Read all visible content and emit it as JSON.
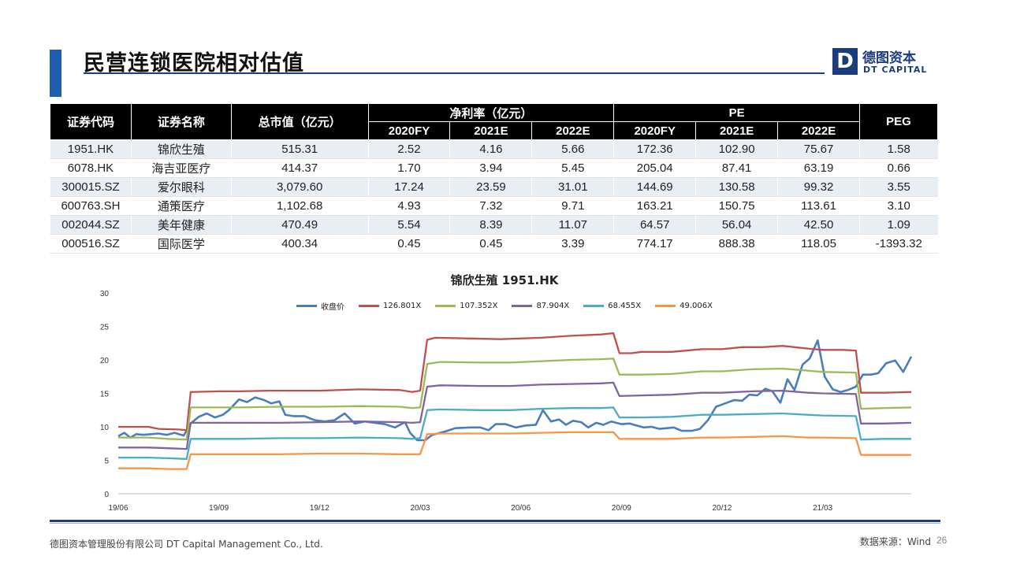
{
  "page": {
    "title": "民营连锁医院相对估值",
    "logo_cn": "德图资本",
    "logo_en": "DT CAPITAL",
    "logo_mark": "D",
    "footer_company": "德图资本管理股份有限公司  DT Capital  Management  Co., Ltd.",
    "source": "数据来源：Wind",
    "page_number": "26"
  },
  "table": {
    "headers": {
      "code": "证券代码",
      "name": "证券名称",
      "mcap": "总市值（亿元）",
      "net_margin": "净利率（亿元）",
      "pe": "PE",
      "peg": "PEG",
      "years": [
        "2020FY",
        "2021E",
        "2022E"
      ]
    },
    "rows": [
      {
        "code": "1951.HK",
        "name": "锦欣生殖",
        "mcap": "515.31",
        "nm": [
          "2.52",
          "4.16",
          "5.66"
        ],
        "pe": [
          "172.36",
          "102.90",
          "75.67"
        ],
        "peg": "1.58"
      },
      {
        "code": "6078.HK",
        "name": "海吉亚医疗",
        "mcap": "414.37",
        "nm": [
          "1.70",
          "3.94",
          "5.45"
        ],
        "pe": [
          "205.04",
          "87.41",
          "63.19"
        ],
        "peg": "0.66"
      },
      {
        "code": "300015.SZ",
        "name": "爱尔眼科",
        "mcap": "3,079.60",
        "nm": [
          "17.24",
          "23.59",
          "31.01"
        ],
        "pe": [
          "144.69",
          "130.58",
          "99.32"
        ],
        "peg": "3.55"
      },
      {
        "code": "600763.SH",
        "name": "通策医疗",
        "mcap": "1,102.68",
        "nm": [
          "4.93",
          "7.32",
          "9.71"
        ],
        "pe": [
          "163.21",
          "150.75",
          "113.61"
        ],
        "peg": "3.10"
      },
      {
        "code": "002044.SZ",
        "name": "美年健康",
        "mcap": "470.49",
        "nm": [
          "5.54",
          "8.39",
          "11.07"
        ],
        "pe": [
          "64.57",
          "56.04",
          "42.50"
        ],
        "peg": "1.09"
      },
      {
        "code": "000516.SZ",
        "name": "国际医学",
        "mcap": "400.34",
        "nm": [
          "0.45",
          "0.45",
          "3.39"
        ],
        "pe": [
          "774.17",
          "888.38",
          "118.05"
        ],
        "peg": "-1393.32"
      }
    ]
  },
  "chart_data": {
    "type": "line",
    "title": "锦欣生殖 1951.HK",
    "xlabel": "",
    "ylabel": "",
    "ylim": [
      0,
      30
    ],
    "yticks": [
      "0",
      "5",
      "10",
      "15",
      "20",
      "25",
      "30"
    ],
    "xticks": [
      "19/06",
      "19/09",
      "19/12",
      "20/03",
      "20/06",
      "20/09",
      "20/12",
      "21/03"
    ],
    "grid": false,
    "legend_position": "top",
    "colors": {
      "close": "#4a7ebb",
      "b1": "#c0504d",
      "b2": "#9bbb59",
      "b3": "#8064a2",
      "b4": "#4bacc6",
      "b5": "#f79646"
    },
    "series": [
      {
        "key": "close",
        "name": "收盘价",
        "points": [
          [
            0.0,
            8.6
          ],
          [
            0.06,
            9.1
          ],
          [
            0.12,
            8.4
          ],
          [
            0.18,
            8.9
          ],
          [
            0.25,
            8.8
          ],
          [
            0.33,
            8.9
          ],
          [
            0.4,
            9.0
          ],
          [
            0.48,
            8.8
          ],
          [
            0.56,
            9.1
          ],
          [
            0.65,
            8.7
          ],
          [
            0.72,
            10.5
          ],
          [
            0.8,
            11.5
          ],
          [
            0.88,
            12.0
          ],
          [
            0.96,
            11.4
          ],
          [
            1.04,
            11.8
          ],
          [
            1.1,
            12.5
          ],
          [
            1.2,
            14.1
          ],
          [
            1.28,
            13.7
          ],
          [
            1.36,
            14.4
          ],
          [
            1.45,
            14.0
          ],
          [
            1.52,
            13.5
          ],
          [
            1.6,
            13.8
          ],
          [
            1.66,
            11.8
          ],
          [
            1.74,
            11.6
          ],
          [
            1.85,
            11.6
          ],
          [
            1.95,
            11.0
          ],
          [
            2.05,
            10.8
          ],
          [
            2.15,
            11.0
          ],
          [
            2.25,
            12.0
          ],
          [
            2.35,
            10.5
          ],
          [
            2.45,
            10.8
          ],
          [
            2.55,
            10.6
          ],
          [
            2.65,
            10.4
          ],
          [
            2.75,
            9.9
          ],
          [
            2.85,
            10.7
          ],
          [
            2.9,
            9.1
          ],
          [
            2.97,
            8.0
          ],
          [
            3.05,
            8.0
          ],
          [
            3.12,
            8.8
          ],
          [
            3.25,
            9.3
          ],
          [
            3.35,
            9.8
          ],
          [
            3.5,
            9.9
          ],
          [
            3.6,
            9.9
          ],
          [
            3.68,
            9.5
          ],
          [
            3.75,
            10.4
          ],
          [
            3.85,
            10.4
          ],
          [
            3.95,
            9.9
          ],
          [
            4.05,
            10.2
          ],
          [
            4.15,
            10.3
          ],
          [
            4.22,
            12.5
          ],
          [
            4.3,
            10.8
          ],
          [
            4.38,
            11.1
          ],
          [
            4.45,
            10.3
          ],
          [
            4.52,
            10.9
          ],
          [
            4.6,
            10.7
          ],
          [
            4.67,
            9.9
          ],
          [
            4.75,
            10.6
          ],
          [
            4.82,
            10.3
          ],
          [
            4.9,
            10.8
          ],
          [
            5.0,
            10.4
          ],
          [
            5.08,
            10.5
          ],
          [
            5.15,
            10.2
          ],
          [
            5.22,
            9.9
          ],
          [
            5.3,
            10.0
          ],
          [
            5.38,
            9.7
          ],
          [
            5.45,
            9.8
          ],
          [
            5.52,
            9.9
          ],
          [
            5.6,
            9.4
          ],
          [
            5.7,
            9.4
          ],
          [
            5.78,
            9.7
          ],
          [
            5.86,
            11.0
          ],
          [
            5.94,
            13.0
          ],
          [
            6.03,
            13.5
          ],
          [
            6.12,
            14.0
          ],
          [
            6.2,
            13.9
          ],
          [
            6.27,
            14.8
          ],
          [
            6.35,
            14.7
          ],
          [
            6.43,
            15.7
          ],
          [
            6.5,
            15.3
          ],
          [
            6.58,
            13.6
          ],
          [
            6.65,
            17.1
          ],
          [
            6.72,
            15.5
          ],
          [
            6.8,
            19.3
          ],
          [
            6.87,
            20.2
          ],
          [
            6.95,
            22.9
          ],
          [
            7.02,
            17.5
          ],
          [
            7.1,
            15.6
          ],
          [
            7.18,
            15.2
          ],
          [
            7.25,
            15.5
          ],
          [
            7.33,
            16.0
          ],
          [
            7.4,
            17.8
          ],
          [
            7.48,
            17.8
          ],
          [
            7.55,
            18.0
          ],
          [
            7.63,
            19.5
          ],
          [
            7.72,
            19.9
          ],
          [
            7.8,
            18.2
          ],
          [
            7.88,
            20.5
          ]
        ]
      },
      {
        "key": "b1",
        "name": "126.801X",
        "points": [
          [
            0.0,
            10.0
          ],
          [
            0.3,
            10.0
          ],
          [
            0.4,
            9.7
          ],
          [
            0.6,
            9.6
          ],
          [
            0.68,
            9.5
          ],
          [
            0.72,
            15.2
          ],
          [
            1.0,
            15.3
          ],
          [
            1.2,
            15.3
          ],
          [
            1.5,
            15.4
          ],
          [
            2.0,
            15.4
          ],
          [
            2.4,
            15.6
          ],
          [
            2.8,
            15.5
          ],
          [
            2.92,
            15.2
          ],
          [
            3.0,
            15.4
          ],
          [
            3.07,
            23.0
          ],
          [
            3.15,
            23.3
          ],
          [
            3.5,
            23.2
          ],
          [
            3.8,
            23.1
          ],
          [
            4.2,
            23.3
          ],
          [
            4.5,
            23.6
          ],
          [
            4.8,
            23.8
          ],
          [
            4.92,
            24.0
          ],
          [
            4.98,
            21.0
          ],
          [
            5.1,
            21.0
          ],
          [
            5.2,
            21.2
          ],
          [
            5.5,
            21.2
          ],
          [
            5.8,
            21.6
          ],
          [
            6.0,
            21.6
          ],
          [
            6.2,
            21.9
          ],
          [
            6.4,
            21.9
          ],
          [
            6.6,
            22.1
          ],
          [
            6.85,
            21.7
          ],
          [
            7.0,
            21.5
          ],
          [
            7.2,
            21.5
          ],
          [
            7.33,
            21.4
          ],
          [
            7.38,
            15.1
          ],
          [
            7.6,
            15.1
          ],
          [
            7.88,
            15.2
          ]
        ]
      },
      {
        "key": "b2",
        "name": "107.352X",
        "points": [
          [
            0.0,
            8.4
          ],
          [
            0.3,
            8.4
          ],
          [
            0.5,
            8.2
          ],
          [
            0.68,
            8.1
          ],
          [
            0.72,
            12.9
          ],
          [
            1.2,
            12.9
          ],
          [
            1.6,
            13.0
          ],
          [
            2.0,
            13.0
          ],
          [
            2.4,
            13.1
          ],
          [
            2.8,
            13.0
          ],
          [
            2.92,
            12.8
          ],
          [
            3.0,
            12.9
          ],
          [
            3.07,
            19.4
          ],
          [
            3.2,
            19.7
          ],
          [
            3.6,
            19.6
          ],
          [
            3.9,
            19.6
          ],
          [
            4.2,
            19.8
          ],
          [
            4.5,
            20.0
          ],
          [
            4.8,
            20.1
          ],
          [
            4.92,
            20.2
          ],
          [
            4.98,
            17.8
          ],
          [
            5.2,
            17.8
          ],
          [
            5.5,
            17.9
          ],
          [
            5.8,
            18.3
          ],
          [
            6.0,
            18.3
          ],
          [
            6.3,
            18.6
          ],
          [
            6.6,
            18.7
          ],
          [
            6.85,
            18.4
          ],
          [
            7.0,
            18.2
          ],
          [
            7.33,
            18.1
          ],
          [
            7.38,
            12.7
          ],
          [
            7.6,
            12.8
          ],
          [
            7.88,
            12.9
          ]
        ]
      },
      {
        "key": "b3",
        "name": "87.904X",
        "points": [
          [
            0.0,
            6.9
          ],
          [
            0.3,
            6.9
          ],
          [
            0.5,
            6.8
          ],
          [
            0.68,
            6.7
          ],
          [
            0.72,
            10.6
          ],
          [
            1.2,
            10.6
          ],
          [
            1.6,
            10.6
          ],
          [
            2.0,
            10.7
          ],
          [
            2.4,
            10.8
          ],
          [
            2.8,
            10.7
          ],
          [
            2.92,
            10.6
          ],
          [
            3.0,
            10.7
          ],
          [
            3.07,
            16.0
          ],
          [
            3.2,
            16.2
          ],
          [
            3.6,
            16.1
          ],
          [
            3.9,
            16.1
          ],
          [
            4.2,
            16.3
          ],
          [
            4.5,
            16.4
          ],
          [
            4.8,
            16.5
          ],
          [
            4.92,
            16.6
          ],
          [
            4.98,
            14.6
          ],
          [
            5.2,
            14.7
          ],
          [
            5.5,
            14.8
          ],
          [
            5.8,
            15.1
          ],
          [
            6.0,
            15.1
          ],
          [
            6.3,
            15.3
          ],
          [
            6.6,
            15.4
          ],
          [
            6.85,
            15.1
          ],
          [
            7.0,
            15.0
          ],
          [
            7.33,
            14.9
          ],
          [
            7.38,
            10.5
          ],
          [
            7.6,
            10.5
          ],
          [
            7.88,
            10.6
          ]
        ]
      },
      {
        "key": "b4",
        "name": "68.455X",
        "points": [
          [
            0.0,
            5.4
          ],
          [
            0.3,
            5.4
          ],
          [
            0.5,
            5.3
          ],
          [
            0.68,
            5.2
          ],
          [
            0.72,
            8.2
          ],
          [
            1.2,
            8.2
          ],
          [
            1.6,
            8.3
          ],
          [
            2.0,
            8.3
          ],
          [
            2.4,
            8.4
          ],
          [
            2.8,
            8.3
          ],
          [
            2.92,
            8.2
          ],
          [
            3.0,
            8.3
          ],
          [
            3.07,
            12.5
          ],
          [
            3.2,
            12.6
          ],
          [
            3.6,
            12.5
          ],
          [
            3.9,
            12.5
          ],
          [
            4.2,
            12.7
          ],
          [
            4.5,
            12.8
          ],
          [
            4.8,
            12.8
          ],
          [
            4.92,
            12.9
          ],
          [
            4.98,
            11.4
          ],
          [
            5.2,
            11.4
          ],
          [
            5.5,
            11.5
          ],
          [
            5.8,
            11.8
          ],
          [
            6.0,
            11.8
          ],
          [
            6.3,
            11.9
          ],
          [
            6.6,
            12.0
          ],
          [
            6.85,
            11.8
          ],
          [
            7.0,
            11.7
          ],
          [
            7.33,
            11.6
          ],
          [
            7.38,
            8.1
          ],
          [
            7.6,
            8.2
          ],
          [
            7.88,
            8.2
          ]
        ]
      },
      {
        "key": "b5",
        "name": "49.006X",
        "points": [
          [
            0.0,
            3.8
          ],
          [
            0.3,
            3.8
          ],
          [
            0.5,
            3.7
          ],
          [
            0.68,
            3.7
          ],
          [
            0.72,
            5.9
          ],
          [
            1.2,
            5.9
          ],
          [
            1.6,
            5.9
          ],
          [
            2.0,
            6.0
          ],
          [
            2.4,
            6.0
          ],
          [
            2.8,
            5.9
          ],
          [
            2.92,
            5.9
          ],
          [
            3.0,
            5.9
          ],
          [
            3.07,
            8.9
          ],
          [
            3.2,
            9.0
          ],
          [
            3.6,
            9.0
          ],
          [
            3.9,
            9.0
          ],
          [
            4.2,
            9.1
          ],
          [
            4.5,
            9.2
          ],
          [
            4.8,
            9.2
          ],
          [
            4.92,
            9.2
          ],
          [
            4.98,
            8.2
          ],
          [
            5.2,
            8.2
          ],
          [
            5.5,
            8.2
          ],
          [
            5.8,
            8.4
          ],
          [
            6.0,
            8.4
          ],
          [
            6.3,
            8.5
          ],
          [
            6.6,
            8.6
          ],
          [
            6.85,
            8.4
          ],
          [
            7.0,
            8.4
          ],
          [
            7.33,
            8.3
          ],
          [
            7.38,
            5.8
          ],
          [
            7.6,
            5.8
          ],
          [
            7.88,
            5.8
          ]
        ]
      }
    ]
  }
}
